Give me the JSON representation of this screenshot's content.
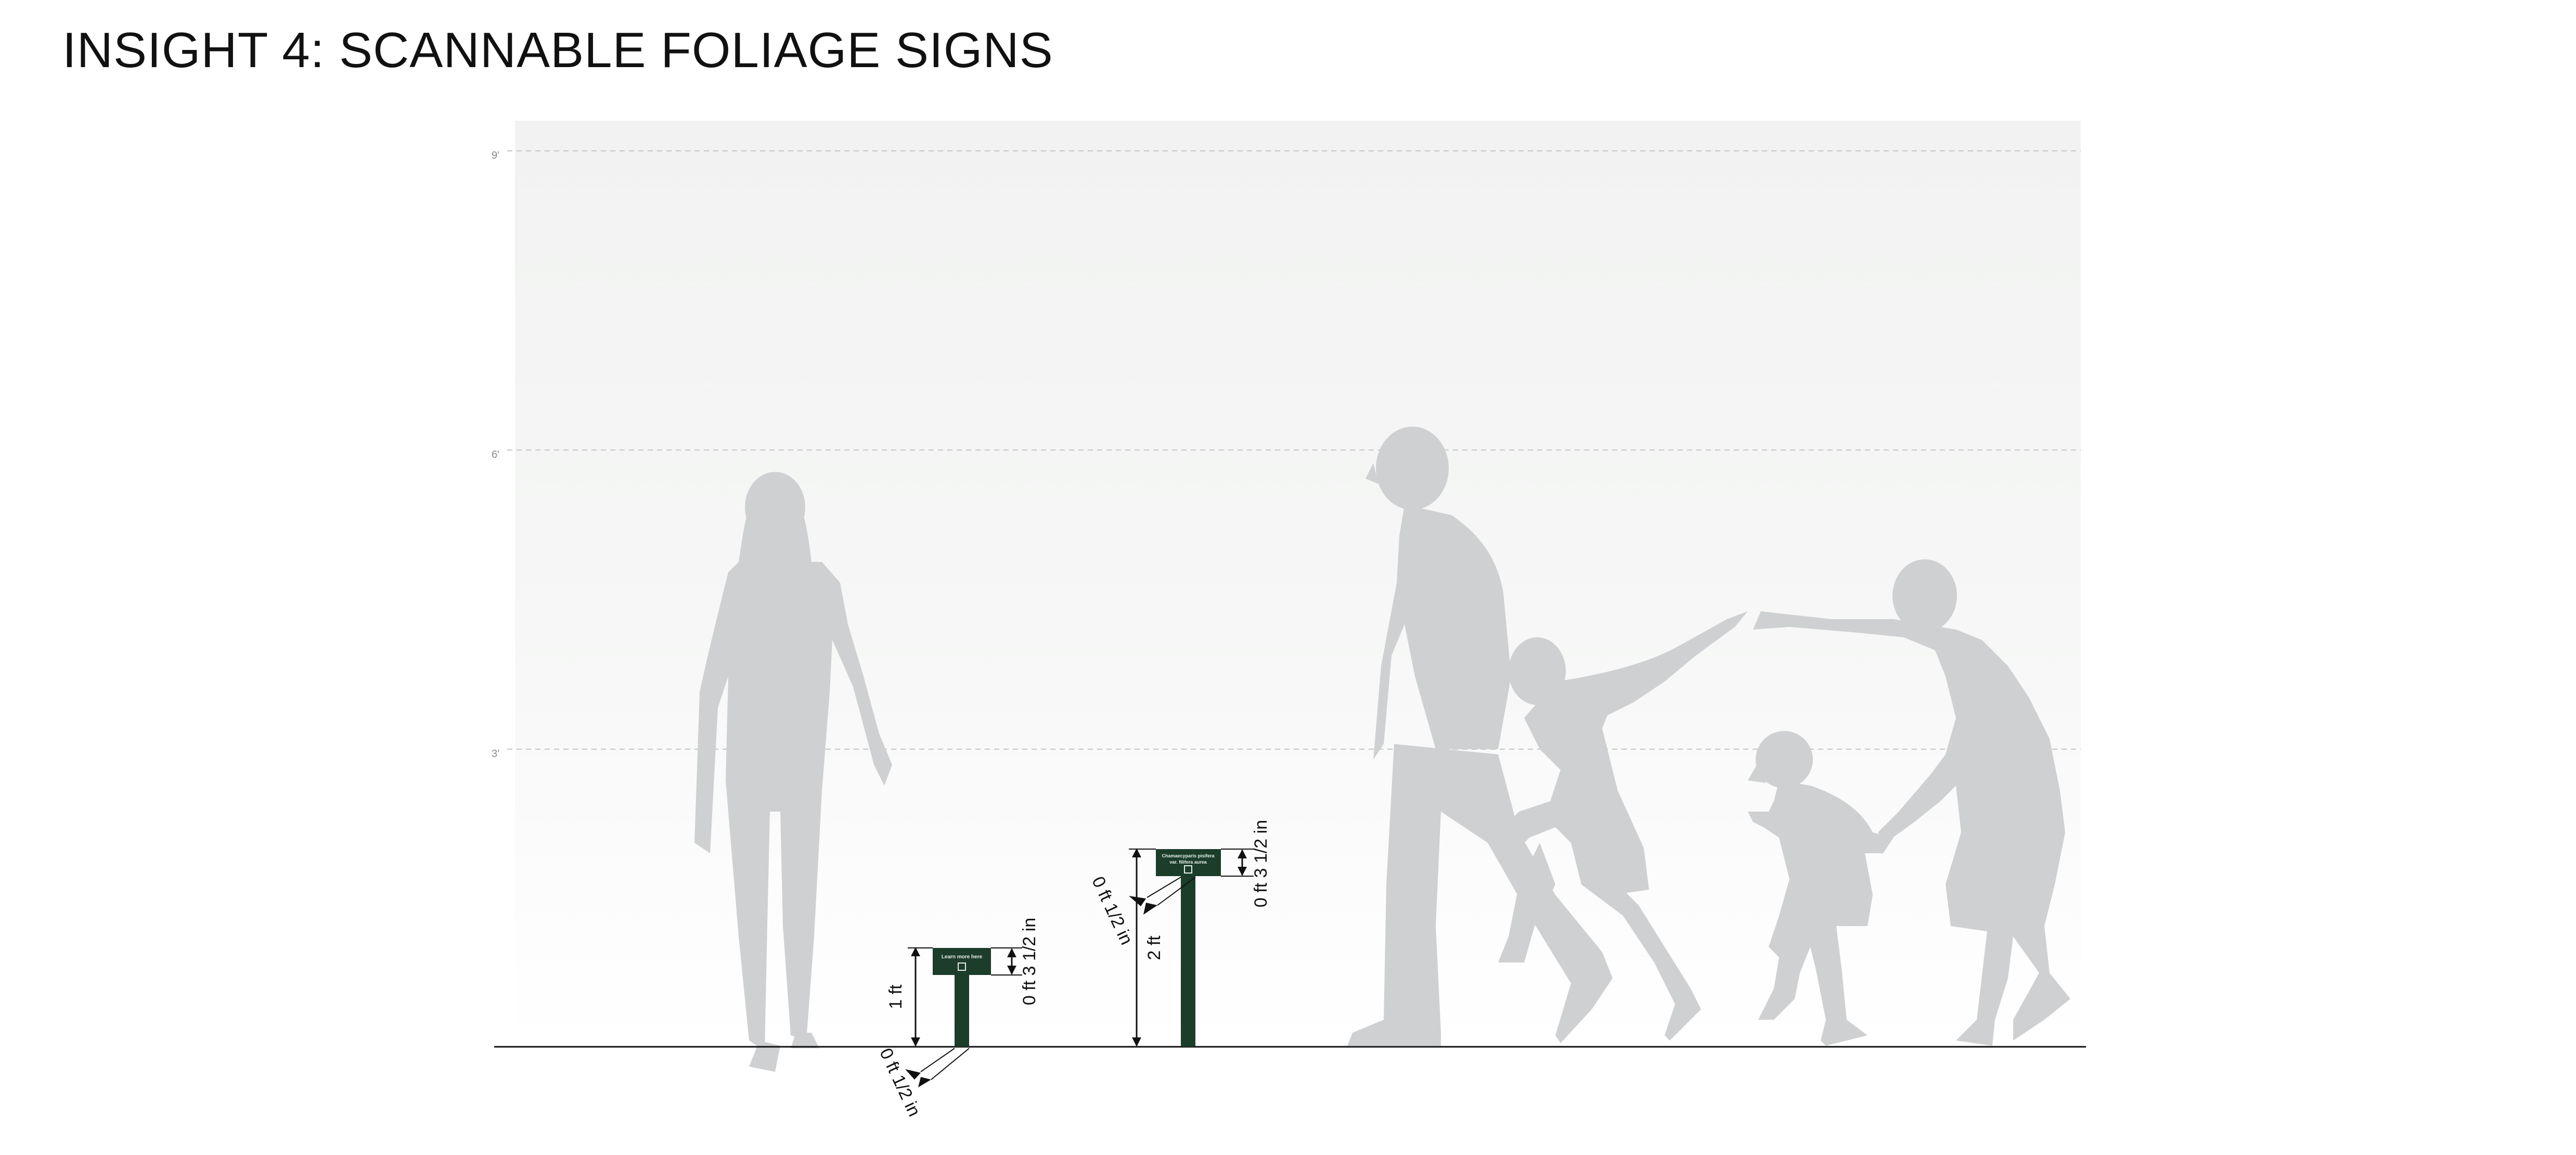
{
  "title": "INSIGHT 4: SCANNABLE FOLIAGE SIGNS",
  "colors": {
    "silhouette": "#cfd0d1",
    "sign_green": "#1b3d2a",
    "ground_line": "#111111",
    "grid_line": "#c4c7c5",
    "background_gradient_top": "#f2f3f2",
    "background_gradient_bottom": "#ffffff"
  },
  "height_scale": {
    "labels": [
      "9'",
      "6'",
      "3'"
    ]
  },
  "small_sign": {
    "face_text": "Learn more here",
    "icon": "qr-code-icon",
    "height_label": "1 ft",
    "face_height_label": "0 ft 3 1/2 in",
    "post_label": "0 ft 1/2 in"
  },
  "tall_sign": {
    "face_text_line1": "Chamaecyparis pisifera",
    "face_text_line2": "var. filifera aurea",
    "icon": "qr-code-icon",
    "height_label": "2 ft",
    "face_height_label": "0 ft 3 1/2 in",
    "post_label": "0 ft 1/2 in"
  },
  "figures": [
    "woman-standing-silhouette",
    "man-leaning-silhouette",
    "child-running-silhouette",
    "small-child-silhouette",
    "woman-pointing-silhouette"
  ]
}
